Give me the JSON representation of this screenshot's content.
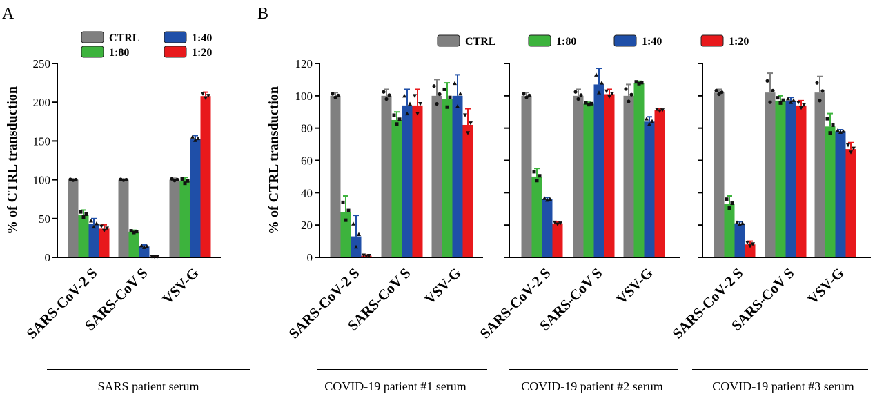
{
  "panel_labels": [
    "A",
    "B"
  ],
  "legend": [
    {
      "label": "CTRL",
      "color": "#808080"
    },
    {
      "label": "1:80",
      "color": "#3db33d"
    },
    {
      "label": "1:40",
      "color": "#1f4fa8"
    },
    {
      "label": "1:20",
      "color": "#e8191c"
    }
  ],
  "chart_data": [
    {
      "type": "bar",
      "panel": "A",
      "ylabel": "% of CTRL transduction",
      "ylim": [
        0,
        250
      ],
      "yticks": [
        0,
        50,
        100,
        150,
        200,
        250
      ],
      "categories": [
        "SARS-CoV-2 S",
        "SARS-CoV S",
        "VSV-G"
      ],
      "caption": "SARS patient serum",
      "series": [
        {
          "name": "CTRL",
          "values": [
            100,
            100,
            100
          ],
          "errors": [
            1,
            1,
            2
          ]
        },
        {
          "name": "1:80",
          "values": [
            55,
            33,
            98
          ],
          "errors": [
            6,
            2,
            5
          ]
        },
        {
          "name": "1:40",
          "values": [
            43,
            14,
            153
          ],
          "errors": [
            7,
            2,
            4
          ]
        },
        {
          "name": "1:20",
          "values": [
            37,
            1,
            208
          ],
          "errors": [
            5,
            0.5,
            5
          ]
        }
      ]
    },
    {
      "type": "bar",
      "panel": "B",
      "ylabel": "% of CTRL transduction",
      "ylim": [
        0,
        120
      ],
      "yticks": [
        0,
        20,
        40,
        60,
        80,
        100,
        120
      ],
      "categories": [
        "SARS-CoV-2 S",
        "SARS-CoV S",
        "VSV-G"
      ],
      "caption": "COVID-19 patient #1 serum",
      "series": [
        {
          "name": "CTRL",
          "values": [
            100,
            100,
            100
          ],
          "errors": [
            2,
            4,
            10
          ]
        },
        {
          "name": "1:80",
          "values": [
            28,
            85,
            98
          ],
          "errors": [
            10,
            5,
            10
          ]
        },
        {
          "name": "1:40",
          "values": [
            13,
            94,
            100
          ],
          "errors": [
            13,
            10,
            13
          ]
        },
        {
          "name": "1:20",
          "values": [
            1,
            94,
            82
          ],
          "errors": [
            0.5,
            10,
            10
          ]
        }
      ]
    },
    {
      "type": "bar",
      "panel": "B",
      "ylim": [
        0,
        120
      ],
      "yticks": [
        0,
        20,
        40,
        60,
        80,
        100,
        120
      ],
      "categories": [
        "SARS-CoV-2 S",
        "SARS-CoV S",
        "VSV-G"
      ],
      "caption": "COVID-19  patient #2 serum",
      "series": [
        {
          "name": "CTRL",
          "values": [
            100,
            100,
            100
          ],
          "errors": [
            2,
            4,
            7
          ]
        },
        {
          "name": "1:80",
          "values": [
            50,
            95,
            108
          ],
          "errors": [
            5,
            1,
            1
          ]
        },
        {
          "name": "1:40",
          "values": [
            36,
            107,
            84
          ],
          "errors": [
            1,
            10,
            3
          ]
        },
        {
          "name": "1:20",
          "values": [
            21,
            101,
            91
          ],
          "errors": [
            1,
            3,
            1
          ]
        }
      ]
    },
    {
      "type": "bar",
      "panel": "B",
      "ylim": [
        0,
        120
      ],
      "yticks": [
        0,
        20,
        40,
        60,
        80,
        100,
        120
      ],
      "categories": [
        "SARS-CoV-2 S",
        "SARS-CoV S",
        "VSV-G"
      ],
      "caption": "COVID-19 patient #3 serum",
      "series": [
        {
          "name": "CTRL",
          "values": [
            102,
            102,
            102
          ],
          "errors": [
            2,
            12,
            10
          ]
        },
        {
          "name": "1:80",
          "values": [
            33,
            97,
            81
          ],
          "errors": [
            5,
            3,
            8
          ]
        },
        {
          "name": "1:40",
          "values": [
            21,
            97,
            78
          ],
          "errors": [
            1,
            2,
            1
          ]
        },
        {
          "name": "1:20",
          "values": [
            8,
            94,
            67
          ],
          "errors": [
            2,
            3,
            4
          ]
        }
      ]
    }
  ]
}
